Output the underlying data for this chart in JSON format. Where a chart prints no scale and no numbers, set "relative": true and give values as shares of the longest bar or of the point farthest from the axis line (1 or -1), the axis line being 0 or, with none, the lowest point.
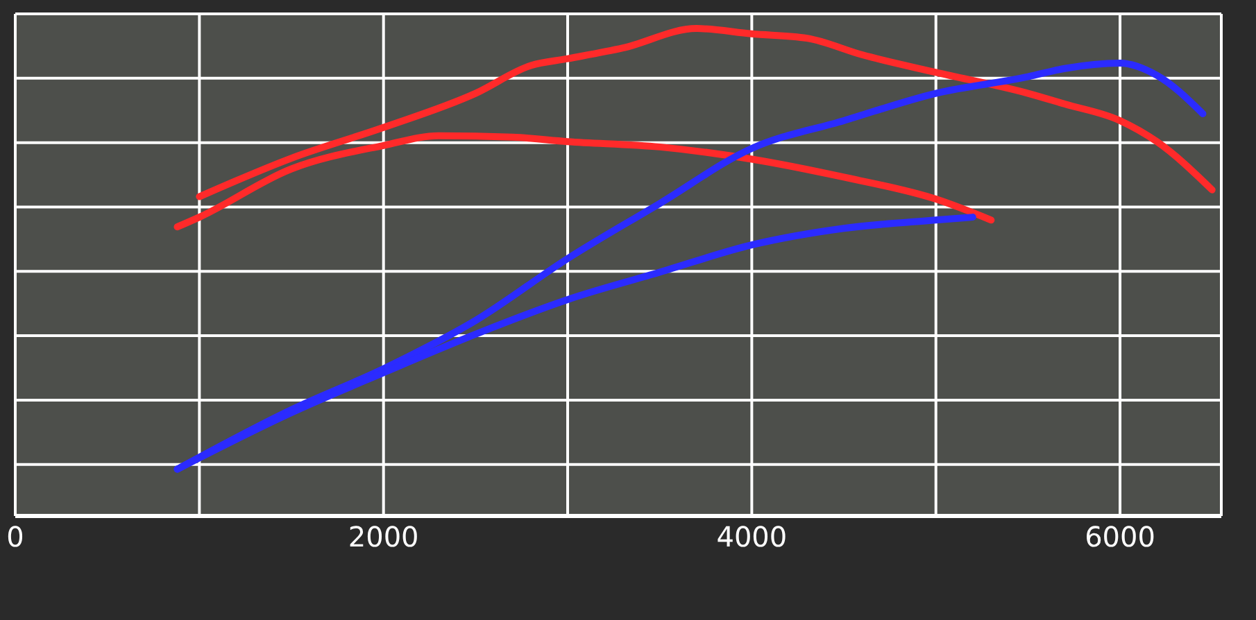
{
  "chart_data": {
    "type": "line",
    "relative": true,
    "grid": true,
    "marker": "none",
    "line_style": "solid",
    "xlim": [
      0,
      6550
    ],
    "xticks": [
      0,
      {
        "value": 1000,
        "label": null
      },
      2000,
      {
        "value": 3000,
        "label": null
      },
      4000,
      {
        "value": 5000,
        "label": null
      },
      6000
    ],
    "series": [
      {
        "color": "#ff2a2a",
        "x": [
          1000,
          1500,
          2000,
          2500,
          2800,
          3000,
          3300,
          3700,
          4000,
          4300,
          4600,
          5000,
          5500,
          5700,
          6000,
          6200,
          6500
        ],
        "values": [
          0.655,
          0.734,
          0.797,
          0.867,
          0.924,
          0.938,
          0.96,
          1,
          0.989,
          0.98,
          0.946,
          0.91,
          0.867,
          0.845,
          0.811,
          0.768,
          0.669
        ]
      },
      {
        "color": "#ff2a2a",
        "x": [
          880,
          1000,
          1500,
          2000,
          2300,
          2700,
          3000,
          3500,
          4000,
          4500,
          5000,
          5300
        ],
        "values": [
          0.593,
          0.613,
          0.712,
          0.76,
          0.78,
          0.777,
          0.768,
          0.757,
          0.732,
          0.695,
          0.65,
          0.607
        ]
      },
      {
        "color": "#2b2bff",
        "x": [
          880,
          1500,
          2000,
          2500,
          3000,
          3500,
          4000,
          4500,
          5000,
          5500,
          5700,
          6000,
          6200,
          6450
        ],
        "values": [
          0.096,
          0.218,
          0.302,
          0.401,
          0.528,
          0.641,
          0.754,
          0.811,
          0.867,
          0.901,
          0.918,
          0.929,
          0.904,
          0.825
        ]
      },
      {
        "color": "#2b2bff",
        "x": [
          880,
          1500,
          2000,
          2500,
          3000,
          3500,
          4000,
          4500,
          5000,
          5200
        ],
        "values": [
          0.096,
          0.212,
          0.294,
          0.373,
          0.444,
          0.5,
          0.556,
          0.59,
          0.607,
          0.613
        ]
      }
    ]
  }
}
